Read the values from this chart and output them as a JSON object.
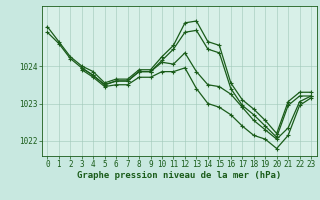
{
  "title": "Graphe pression niveau de la mer (hPa)",
  "xlabel": "Graphe pression niveau de la mer (hPa)",
  "background_color": "#c8e8e0",
  "plot_bg_color": "#d8f0e8",
  "line_color": "#1a5c1a",
  "grid_color": "#a0c8b8",
  "ylim": [
    1021.6,
    1025.6
  ],
  "xlim": [
    -0.5,
    23.5
  ],
  "yticks": [
    1022,
    1023,
    1024
  ],
  "xticks": [
    0,
    1,
    2,
    3,
    4,
    5,
    6,
    7,
    8,
    9,
    10,
    11,
    12,
    13,
    14,
    15,
    16,
    17,
    18,
    19,
    20,
    21,
    22,
    23
  ],
  "series": [
    {
      "x": [
        0,
        1,
        2,
        3,
        4,
        5,
        6,
        7,
        8,
        9,
        10,
        11,
        12,
        13,
        14,
        15,
        16,
        17,
        18,
        19,
        20,
        21,
        22,
        23
      ],
      "y": [
        1025.05,
        1024.65,
        1024.25,
        1024.0,
        1023.85,
        1023.55,
        1023.65,
        1023.65,
        1023.9,
        1023.9,
        1024.25,
        1024.55,
        1025.15,
        1025.2,
        1024.65,
        1024.55,
        1023.55,
        1023.1,
        1022.85,
        1022.55,
        1022.2,
        1023.05,
        1023.3,
        1023.3
      ]
    },
    {
      "x": [
        0,
        1,
        2,
        3,
        4,
        5,
        6,
        7,
        8,
        9,
        10,
        11,
        12,
        13,
        14,
        15,
        16,
        17,
        18,
        19,
        20,
        21,
        22,
        23
      ],
      "y": [
        1024.9,
        1024.6,
        1024.2,
        1023.95,
        1023.75,
        1023.5,
        1023.6,
        1023.6,
        1023.85,
        1023.85,
        1024.15,
        1024.45,
        1024.9,
        1024.95,
        1024.45,
        1024.35,
        1023.4,
        1022.95,
        1022.7,
        1022.4,
        1022.1,
        1022.95,
        1023.2,
        1023.2
      ]
    },
    {
      "x": [
        3,
        4,
        5,
        6,
        7,
        8,
        9,
        10,
        11,
        12,
        13,
        14,
        15,
        16,
        17,
        18,
        19,
        20,
        21,
        22,
        23
      ],
      "y": [
        1023.95,
        1023.75,
        1023.5,
        1023.6,
        1023.6,
        1023.85,
        1023.85,
        1024.1,
        1024.05,
        1024.35,
        1023.85,
        1023.5,
        1023.45,
        1023.25,
        1022.9,
        1022.55,
        1022.3,
        1022.05,
        1022.35,
        1023.05,
        1023.2
      ]
    },
    {
      "x": [
        3,
        4,
        5,
        6,
        7,
        8,
        9,
        10,
        11,
        12,
        13,
        14,
        15,
        16,
        17,
        18,
        19,
        20,
        21,
        22,
        23
      ],
      "y": [
        1023.9,
        1023.7,
        1023.45,
        1023.5,
        1023.5,
        1023.7,
        1023.7,
        1023.85,
        1023.85,
        1023.95,
        1023.4,
        1023.0,
        1022.9,
        1022.7,
        1022.4,
        1022.15,
        1022.05,
        1021.8,
        1022.15,
        1022.95,
        1023.15
      ]
    }
  ],
  "tick_fontsize": 5.5,
  "label_fontsize": 6.5,
  "marker": "+",
  "markersize": 3.5,
  "linewidth": 0.9
}
